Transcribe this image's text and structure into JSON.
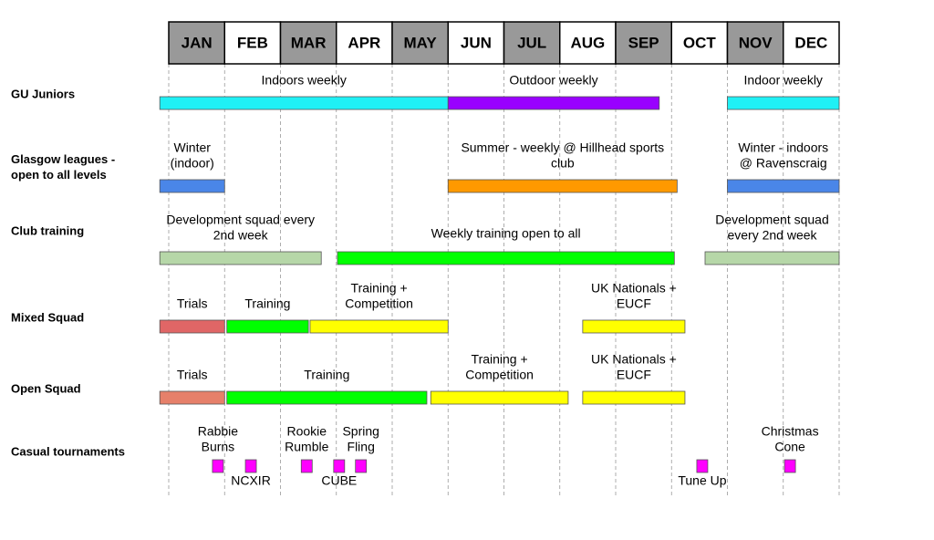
{
  "months": [
    "JAN",
    "FEB",
    "MAR",
    "APR",
    "MAY",
    "JUN",
    "JUL",
    "AUG",
    "SEP",
    "OCT",
    "NOV",
    "DEC"
  ],
  "rows": [
    {
      "label": [
        "GU Juniors"
      ],
      "bars": [
        {
          "start": -0.16,
          "end": 5.0,
          "color": "#1ff0f5",
          "label": [
            "Indoors weekly"
          ]
        },
        {
          "start": 5.0,
          "end": 8.78,
          "color": "#9900ff",
          "label": [
            "Outdoor weekly"
          ]
        },
        {
          "start": 10.0,
          "end": 12.0,
          "color": "#1ff0f5",
          "label": [
            "Indoor weekly"
          ]
        }
      ]
    },
    {
      "label": [
        "Glasgow leagues -",
        "open to all levels"
      ],
      "bars": [
        {
          "start": -0.16,
          "end": 1.0,
          "color": "#4a86e8",
          "label": [
            "Winter",
            "(indoor)"
          ]
        },
        {
          "start": 5.0,
          "end": 9.1,
          "color": "#ff9900",
          "label": [
            "Summer - weekly @ Hillhead sports",
            "club"
          ]
        },
        {
          "start": 10.0,
          "end": 12.0,
          "color": "#4a86e8",
          "label": [
            "Winter - indoors",
            "@ Ravenscraig"
          ]
        }
      ]
    },
    {
      "label": [
        "Club training"
      ],
      "bars": [
        {
          "start": -0.16,
          "end": 2.73,
          "color": "#b6d7a8",
          "label": [
            "Development squad every",
            "2nd week"
          ]
        },
        {
          "start": 3.02,
          "end": 9.05,
          "color": "#00ff00",
          "label": [
            "Weekly training open to all"
          ]
        },
        {
          "start": 9.6,
          "end": 12.0,
          "color": "#b6d7a8",
          "label": [
            "Development squad",
            "every 2nd week"
          ]
        }
      ]
    },
    {
      "label": [
        "Mixed Squad"
      ],
      "bars": [
        {
          "start": -0.16,
          "end": 1.0,
          "color": "#e06666",
          "label": [
            "Trials"
          ]
        },
        {
          "start": 1.04,
          "end": 2.5,
          "color": "#00ff00",
          "label": [
            "Training"
          ]
        },
        {
          "start": 2.53,
          "end": 5.0,
          "color": "#ffff00",
          "label": [
            "Training +",
            "Competition"
          ]
        },
        {
          "start": 7.41,
          "end": 9.24,
          "color": "#ffff00",
          "label": [
            "UK Nationals +",
            "EUCF"
          ]
        }
      ]
    },
    {
      "label": [
        "Open Squad"
      ],
      "bars": [
        {
          "start": -0.16,
          "end": 1.0,
          "color": "#e6806a",
          "label": [
            "Trials"
          ]
        },
        {
          "start": 1.04,
          "end": 4.62,
          "color": "#00ff00",
          "label": [
            "Training"
          ]
        },
        {
          "start": 4.69,
          "end": 7.15,
          "color": "#ffff00",
          "label": [
            "Training +",
            "Competition"
          ]
        },
        {
          "start": 7.41,
          "end": 9.24,
          "color": "#ffff00",
          "label": [
            "UK Nationals +",
            "EUCF"
          ]
        }
      ]
    }
  ],
  "tournaments": {
    "label": [
      "Casual tournaments"
    ],
    "color": "#ff00ff",
    "items": [
      {
        "name": [
          "Rabbie",
          "Burns"
        ],
        "month": 0.88
      },
      {
        "name": [
          "NCXIR"
        ],
        "month": 1.47
      },
      {
        "name": [
          "Rookie",
          "Rumble"
        ],
        "month": 2.47
      },
      {
        "name": [
          "CUBE"
        ],
        "month": 3.05
      },
      {
        "name": [
          "Spring",
          "Fling"
        ],
        "month": 3.44
      },
      {
        "name": [
          "Tune Up"
        ],
        "month": 9.55
      },
      {
        "name": [
          "Christmas",
          "Cone"
        ],
        "month": 11.12
      }
    ]
  }
}
